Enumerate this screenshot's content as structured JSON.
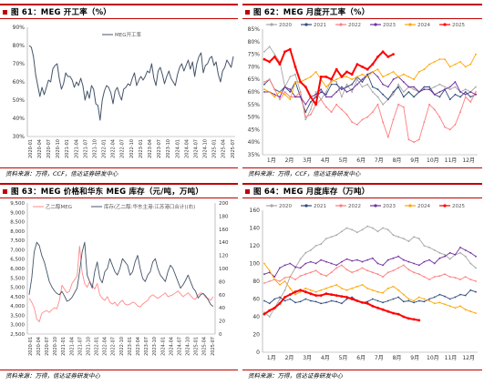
{
  "panels": [
    {
      "title": "图 61：MEG 开工率（%）",
      "source": "资料来源：万得，CCF，信达证券研发中心"
    },
    {
      "title": "图 62：MEG 月度开工率（%）",
      "source": "资料来源：万得，CCF，信达证券研发中心"
    },
    {
      "title": "图 63：MEG 价格和华东 MEG 库存（元/吨，万吨）",
      "source": "资料来源：万得，信达证券研发中心"
    },
    {
      "title": "图 64：MEG 月度库存（万吨）",
      "source": "资料来源：万得，信达证券研发中心"
    }
  ],
  "chart_data": [
    {
      "type": "line",
      "yticks": [
        "30%",
        "40%",
        "50%",
        "60%",
        "70%",
        "80%",
        "90%"
      ],
      "ylim": [
        30,
        90
      ],
      "xticks": [
        "2020-01",
        "2020-04",
        "2020-07",
        "2020-10",
        "2021-01",
        "2021-04",
        "2021-07",
        "2021-10",
        "2022-01",
        "2022-04",
        "2022-07",
        "2022-10",
        "2023-01",
        "2023-04",
        "2023-07",
        "2023-10",
        "2024-01",
        "2024-04",
        "2024-07",
        "2024-10",
        "2025-01",
        "2025-04",
        "2025-07"
      ],
      "series": [
        {
          "name": "MEG开工率",
          "color": "#44546a",
          "values": [
            80,
            79,
            74,
            64,
            58,
            52,
            57,
            53,
            57,
            61,
            60,
            67,
            69,
            70,
            62,
            56,
            59,
            65,
            63,
            63,
            61,
            57,
            60,
            58,
            62,
            58,
            50,
            55,
            51,
            58,
            56,
            48,
            47,
            39,
            50,
            55,
            58,
            57,
            54,
            48,
            55,
            57,
            53,
            50,
            56,
            57,
            59,
            58,
            62,
            65,
            58,
            61,
            63,
            61,
            63,
            66,
            65,
            70,
            62,
            58,
            66,
            68,
            64,
            59,
            63,
            66,
            62,
            60,
            58,
            64,
            68,
            70,
            66,
            69,
            72,
            67,
            71,
            63,
            70,
            74,
            76,
            65,
            69,
            70,
            73,
            74,
            69,
            71,
            64,
            60,
            66,
            68,
            72,
            70,
            68,
            74
          ]
        }
      ]
    },
    {
      "type": "line",
      "yticks": [
        "35%",
        "40%",
        "45%",
        "50%",
        "55%",
        "60%",
        "65%",
        "70%",
        "75%",
        "80%",
        "85%"
      ],
      "ylim": [
        35,
        85
      ],
      "xticks": [
        "1月",
        "2月",
        "3月",
        "4月",
        "5月",
        "6月",
        "7月",
        "8月",
        "9月",
        "10月",
        "11月",
        "12月"
      ],
      "series": [
        {
          "name": "2020",
          "color": "#a6a6a6",
          "values": [
            76,
            78,
            75,
            72,
            62,
            66,
            67,
            60,
            49,
            53,
            60,
            57,
            60,
            65,
            64,
            58,
            63,
            60,
            65,
            62,
            63,
            60,
            58,
            55,
            57,
            59,
            63,
            60,
            62,
            61,
            60,
            61,
            61,
            62,
            63,
            62,
            61,
            62,
            60,
            61,
            60,
            62
          ]
        },
        {
          "name": "2021",
          "color": "#2f4b7c",
          "values": [
            63,
            65,
            61,
            60,
            62,
            60,
            64,
            58,
            52,
            56,
            58,
            60,
            59,
            63,
            63,
            61,
            62,
            63,
            66,
            64,
            67,
            62,
            61,
            59,
            57,
            60,
            62,
            58,
            60,
            58,
            60,
            62,
            62,
            59,
            58,
            61,
            57,
            59,
            58,
            60,
            58,
            59
          ]
        },
        {
          "name": "2022",
          "color": "#ff7c7c",
          "values": [
            64,
            65,
            61,
            57,
            60,
            58,
            58,
            60,
            50,
            51,
            55,
            57,
            54,
            52,
            55,
            53,
            51,
            48,
            47,
            49,
            50,
            52,
            55,
            48,
            42,
            49,
            55,
            54,
            41,
            40,
            41,
            48,
            55,
            53,
            50,
            46,
            45,
            47,
            52,
            58,
            56,
            60
          ]
        },
        {
          "name": "2023",
          "color": "#7030a0",
          "values": [
            60,
            60,
            59,
            58,
            62,
            61,
            58,
            58,
            55,
            58,
            59,
            61,
            58,
            58,
            60,
            62,
            60,
            61,
            63,
            65,
            67,
            68,
            66,
            63,
            62,
            65,
            66,
            64,
            62,
            62,
            60,
            61,
            61,
            59,
            60,
            61,
            62,
            64,
            60,
            59,
            60,
            59
          ]
        },
        {
          "name": "2024",
          "color": "#ffa500",
          "values": [
            61,
            60,
            58,
            60,
            59,
            57,
            64,
            64,
            65,
            66,
            68,
            65,
            62,
            64,
            65,
            66,
            66,
            65,
            66,
            67,
            66,
            68,
            69,
            66,
            67,
            68,
            66,
            67,
            66,
            65,
            68,
            69,
            71,
            72,
            73,
            73,
            70,
            71,
            72,
            70,
            71,
            75
          ]
        },
        {
          "name": "2025",
          "color": "#ff0000",
          "values": [
            73,
            72,
            74,
            71,
            76,
            77,
            70,
            64,
            62,
            58,
            55,
            66,
            66,
            65,
            69,
            66,
            68,
            67,
            71,
            70,
            69,
            71,
            74,
            76,
            74,
            75
          ]
        }
      ]
    },
    {
      "type": "line",
      "yleft_ticks": [
        "2,500",
        "3,000",
        "3,500",
        "4,000",
        "4,500",
        "5,000",
        "5,500",
        "6,000",
        "6,500",
        "7,000",
        "7,500",
        "8,000",
        "8,500",
        "9,000",
        "9,500"
      ],
      "yleft_lim": [
        2500,
        9500
      ],
      "yright_ticks": [
        "0",
        "20",
        "40",
        "60",
        "80",
        "100",
        "120",
        "140",
        "160",
        "180",
        "200"
      ],
      "yright_lim": [
        0,
        200
      ],
      "xticks": [
        "2020-01",
        "2020-04",
        "2020-07",
        "2020-10",
        "2021-01",
        "2021-04",
        "2021-07",
        "2021-10",
        "2022-01",
        "2022-04",
        "2022-07",
        "2022-10",
        "2023-01",
        "2023-04",
        "2023-07",
        "2023-10",
        "2024-01",
        "2024-04",
        "2024-07",
        "2024-10",
        "2025-01",
        "2025-04",
        "2025-07"
      ],
      "series": [
        {
          "name": "乙二醇MEG",
          "axis": "left",
          "color": "#ff8a8a",
          "values": [
            4400,
            4200,
            3900,
            3300,
            3150,
            3600,
            3700,
            3750,
            3650,
            3800,
            3900,
            3850,
            4300,
            5100,
            4900,
            4700,
            4800,
            5200,
            5400,
            5600,
            7200,
            5800,
            5200,
            5000,
            5300,
            5100,
            4900,
            5200,
            4600,
            4400,
            4300,
            4500,
            4200,
            4100,
            4200,
            4000,
            4200,
            4300,
            4100,
            4050,
            4100,
            4200,
            4150,
            4000,
            3950,
            4100,
            4200,
            4300,
            4500,
            4600,
            4500,
            4400,
            4500,
            4600,
            4700,
            4500,
            4550,
            4600,
            4700,
            4800,
            4650,
            4500,
            4600,
            4700,
            4550,
            4400,
            4350,
            4600,
            4700,
            4650,
            4450,
            4400,
            4300,
            4500
          ]
        },
        {
          "name": "库存(乙二醇:华东主港:江苏港口合计)(右)",
          "axis": "right",
          "color": "#44546a",
          "values": [
            60,
            85,
            125,
            140,
            135,
            120,
            110,
            95,
            80,
            72,
            66,
            62,
            60,
            65,
            58,
            50,
            52,
            56,
            63,
            70,
            95,
            125,
            140,
            90,
            80,
            70,
            95,
            110,
            85,
            78,
            95,
            100,
            115,
            105,
            95,
            90,
            100,
            115,
            110,
            105,
            90,
            95,
            110,
            120,
            100,
            85,
            80,
            90,
            95,
            110,
            115,
            100,
            90,
            85,
            80,
            95,
            105,
            100,
            90,
            80,
            70,
            75,
            82,
            90,
            80,
            70,
            65,
            55,
            60,
            62,
            58,
            52,
            45,
            42
          ]
        }
      ]
    },
    {
      "type": "line",
      "yticks": [
        "0",
        "20",
        "40",
        "60",
        "80",
        "100",
        "120",
        "140",
        "160"
      ],
      "ylim": [
        0,
        160
      ],
      "xticks": [
        "1月",
        "2月",
        "3月",
        "4月",
        "5月",
        "6月",
        "7月",
        "8月",
        "9月",
        "10月",
        "11月",
        "12月"
      ],
      "series": [
        {
          "name": "2020",
          "color": "#a6a6a6",
          "values": [
            45,
            40,
            50,
            60,
            70,
            85,
            95,
            105,
            112,
            115,
            120,
            122,
            128,
            130,
            132,
            136,
            140,
            138,
            135,
            138,
            142,
            140,
            136,
            140,
            138,
            132,
            130,
            128,
            125,
            130,
            128,
            120,
            118,
            115,
            112,
            110,
            105,
            110,
            112,
            108,
            100,
            95
          ]
        },
        {
          "name": "2021",
          "color": "#2f4b7c",
          "values": [
            58,
            55,
            60,
            62,
            58,
            60,
            56,
            57,
            60,
            58,
            57,
            55,
            56,
            58,
            57,
            55,
            60,
            62,
            58,
            56,
            57,
            60,
            58,
            56,
            58,
            60,
            62,
            57,
            58,
            56,
            58,
            57,
            60,
            62,
            65,
            63,
            60,
            62,
            65,
            64,
            70,
            68
          ]
        },
        {
          "name": "2022",
          "color": "#ff7c7c",
          "values": [
            78,
            80,
            82,
            80,
            84,
            85,
            82,
            86,
            88,
            90,
            92,
            88,
            86,
            90,
            95,
            98,
            93,
            90,
            92,
            95,
            92,
            90,
            88,
            85,
            90,
            92,
            95,
            98,
            93,
            90,
            88,
            85,
            82,
            85,
            86,
            88,
            85,
            84,
            82,
            85,
            82,
            80
          ]
        },
        {
          "name": "2023",
          "color": "#7030a0",
          "values": [
            88,
            90,
            85,
            95,
            98,
            100,
            96,
            95,
            100,
            102,
            100,
            104,
            102,
            100,
            98,
            102,
            105,
            103,
            104,
            102,
            104,
            106,
            100,
            98,
            104,
            106,
            108,
            104,
            102,
            100,
            98,
            102,
            104,
            100,
            106,
            108,
            112,
            110,
            118,
            115,
            112,
            108
          ]
        },
        {
          "name": "2024",
          "color": "#ffa500",
          "values": [
            100,
            92,
            82,
            76,
            80,
            72,
            65,
            68,
            72,
            70,
            68,
            70,
            72,
            74,
            76,
            72,
            70,
            72,
            74,
            76,
            72,
            70,
            68,
            67,
            72,
            74,
            70,
            65,
            60,
            58,
            62,
            60,
            58,
            55,
            56,
            54,
            52,
            50,
            52,
            48,
            46,
            44
          ]
        },
        {
          "name": "2025",
          "color": "#ff0000",
          "values": [
            43,
            47,
            50,
            55,
            62,
            65,
            68,
            70,
            68,
            66,
            64,
            64,
            66,
            65,
            64,
            63,
            62,
            60,
            58,
            56,
            55,
            52,
            50,
            48,
            46,
            44,
            43,
            40,
            38,
            37,
            36
          ]
        }
      ]
    }
  ]
}
